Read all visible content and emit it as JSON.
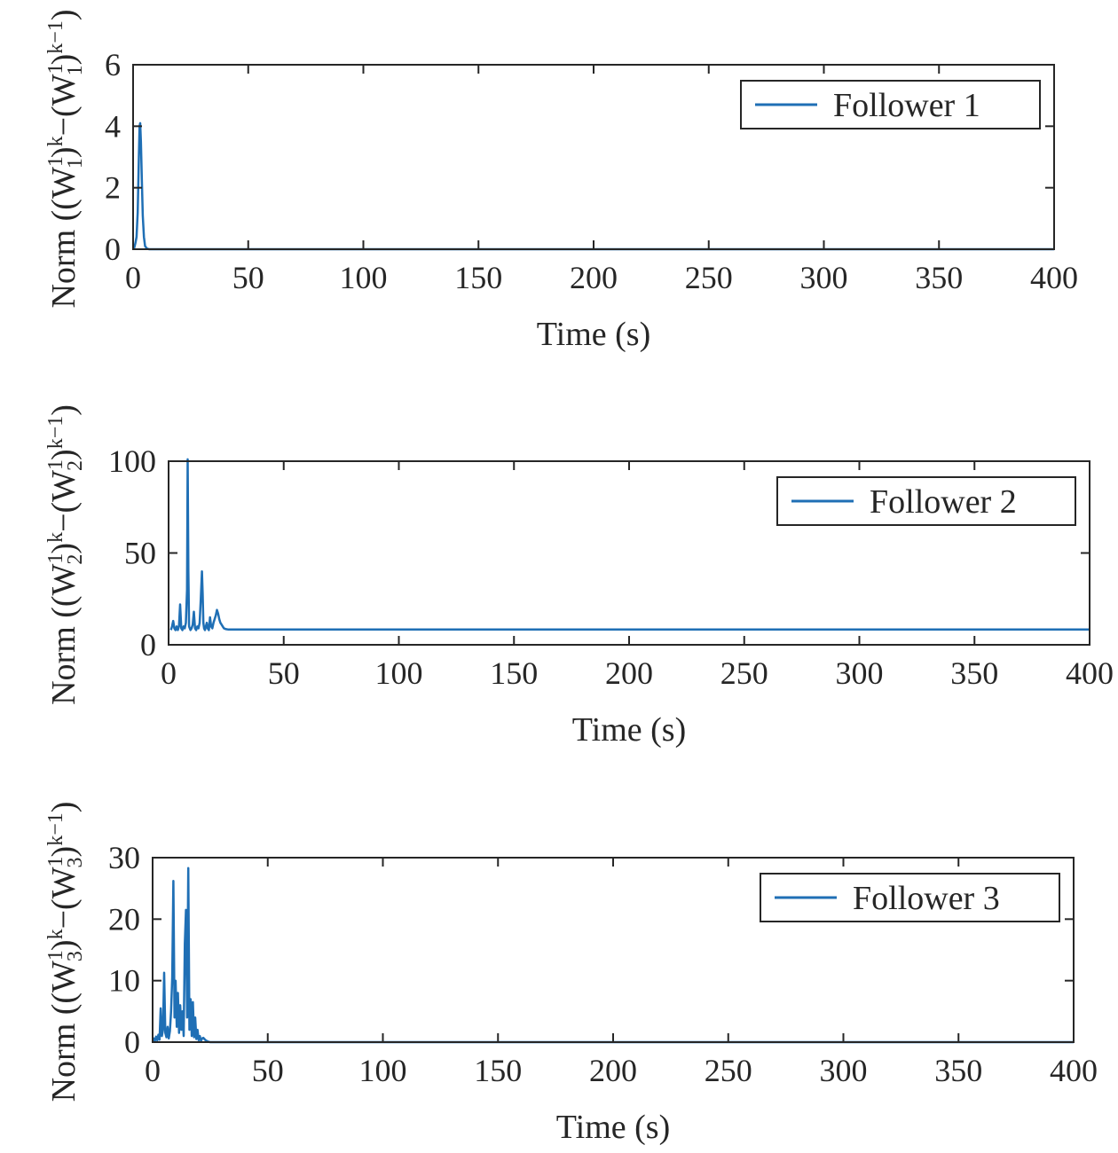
{
  "colors": {
    "series": "#1f6fb5",
    "axis": "#262626"
  },
  "chart_data": [
    {
      "type": "line",
      "xlabel": "Time (s)",
      "ylabel": {
        "pre": "Norm ((W",
        "sup1": "1",
        "sub1": "1",
        "mid": ")",
        "sup2": "k",
        "mid2": "−(W",
        "sup3": "1",
        "sub3": "1",
        "post": ")",
        "sup4": "k−1",
        "end": ")"
      },
      "xlim": [
        0,
        400
      ],
      "ylim": [
        0,
        6
      ],
      "xticks": [
        "0",
        "50",
        "100",
        "150",
        "200",
        "250",
        "300",
        "350",
        "400"
      ],
      "yticks": [
        "0",
        "2",
        "4",
        "6"
      ],
      "legend": "top-right",
      "series": [
        {
          "name": "Follower 1",
          "x": [
            0,
            0.5,
            1,
            1.5,
            2,
            2.5,
            2.8,
            3.1,
            3.4,
            3.8,
            4.2,
            4.7,
            5.2,
            6,
            7,
            10,
            50,
            100,
            150,
            200,
            250,
            300,
            350,
            400
          ],
          "y": [
            0,
            0.05,
            0.2,
            0.4,
            1.2,
            3.0,
            4.0,
            4.1,
            3.5,
            2.2,
            1.1,
            0.4,
            0.1,
            0.02,
            0,
            0,
            0,
            0,
            0,
            0,
            0,
            0,
            0,
            0
          ]
        }
      ]
    },
    {
      "type": "line",
      "xlabel": "Time (s)",
      "ylabel": {
        "pre": "Norm ((W",
        "sup1": "1",
        "sub1": "2",
        "mid": ")",
        "sup2": "k",
        "mid2": "−(W",
        "sup3": "1",
        "sub3": "2",
        "post": ")",
        "sup4": "k−1",
        "end": ")"
      },
      "xlim": [
        0,
        400
      ],
      "ylim": [
        0,
        100
      ],
      "xticks": [
        "0",
        "50",
        "100",
        "150",
        "200",
        "250",
        "300",
        "350",
        "400"
      ],
      "yticks": [
        "0",
        "50",
        "100"
      ],
      "legend": "top-right",
      "series": [
        {
          "name": "Follower 2",
          "x": [
            1,
            1.5,
            2,
            2.5,
            3,
            3.5,
            4,
            4.5,
            5,
            5.5,
            6,
            6.5,
            7,
            7.5,
            8,
            8.3,
            8.6,
            8.9,
            9.2,
            9.5,
            10,
            10.5,
            11,
            11.5,
            12,
            12.5,
            13,
            13.5,
            14,
            14.5,
            14.8,
            15.1,
            15.4,
            15.8,
            16.2,
            16.6,
            17,
            17.5,
            18,
            18.5,
            19,
            19.5,
            20,
            20.5,
            21,
            21.5,
            22,
            22.5,
            23,
            23.5,
            24,
            25,
            26,
            30,
            50,
            100,
            150,
            200,
            250,
            300,
            350,
            400
          ],
          "y": [
            8,
            10,
            13,
            9,
            8,
            10,
            8,
            10,
            22,
            9,
            8,
            10,
            9,
            12,
            30,
            101,
            40,
            10,
            9,
            8,
            9,
            11,
            18,
            9,
            8,
            10,
            9,
            12,
            25,
            40,
            28,
            12,
            9,
            8,
            10,
            12,
            9,
            8,
            15,
            10,
            9,
            12,
            14,
            16,
            19,
            17,
            14,
            12,
            11,
            10,
            9,
            8.5,
            8.3,
            8.3,
            8.3,
            8.3,
            8.3,
            8.3,
            8.3,
            8.3,
            8.3,
            8.3
          ]
        }
      ]
    },
    {
      "type": "line",
      "xlabel": "Time (s)",
      "ylabel": {
        "pre": "Norm ((W",
        "sup1": "1",
        "sub1": "3",
        "mid": ")",
        "sup2": "k",
        "mid2": "−(W",
        "sup3": "1",
        "sub3": "3",
        "post": ")",
        "sup4": "k−1",
        "end": ")"
      },
      "xlim": [
        0,
        400
      ],
      "ylim": [
        0,
        30
      ],
      "xticks": [
        "0",
        "50",
        "100",
        "150",
        "200",
        "250",
        "300",
        "350",
        "400"
      ],
      "yticks": [
        "0",
        "10",
        "20",
        "30"
      ],
      "legend": "top-right",
      "series": [
        {
          "name": "Follower 3",
          "x": [
            0,
            0.5,
            1,
            1.5,
            2,
            2.5,
            3,
            3.5,
            4,
            4.5,
            5,
            5.5,
            6,
            6.5,
            7,
            7.5,
            8,
            8.5,
            9,
            9.5,
            10,
            10.5,
            11,
            11.5,
            12,
            12.5,
            13,
            13.5,
            14,
            14.5,
            15,
            15.5,
            16,
            16.5,
            17,
            17.5,
            18,
            18.5,
            19,
            19.5,
            20,
            20.5,
            21,
            21.5,
            22,
            22.5,
            23,
            23.5,
            24,
            24.5,
            25,
            26,
            27,
            30,
            50,
            100,
            150,
            200,
            250,
            300,
            350,
            400
          ],
          "y": [
            0,
            0.6,
            0.2,
            0.9,
            0.3,
            1.2,
            0.4,
            5.5,
            1.0,
            2.0,
            11.3,
            1.5,
            0.8,
            2.5,
            0.6,
            1.8,
            5.0,
            10.5,
            26.2,
            4.0,
            10.0,
            2.5,
            8.0,
            1.5,
            6.0,
            2.0,
            5.0,
            1.0,
            16.0,
            21.5,
            4.0,
            28.3,
            2.0,
            7.0,
            1.0,
            6.5,
            0.8,
            4.0,
            0.5,
            2.0,
            0.3,
            1.0,
            0.2,
            0.6,
            0.7,
            0.5,
            0.3,
            0.2,
            0.1,
            0.05,
            0,
            0,
            0,
            0,
            0,
            0,
            0,
            0,
            0,
            0,
            0,
            0
          ]
        }
      ]
    }
  ]
}
